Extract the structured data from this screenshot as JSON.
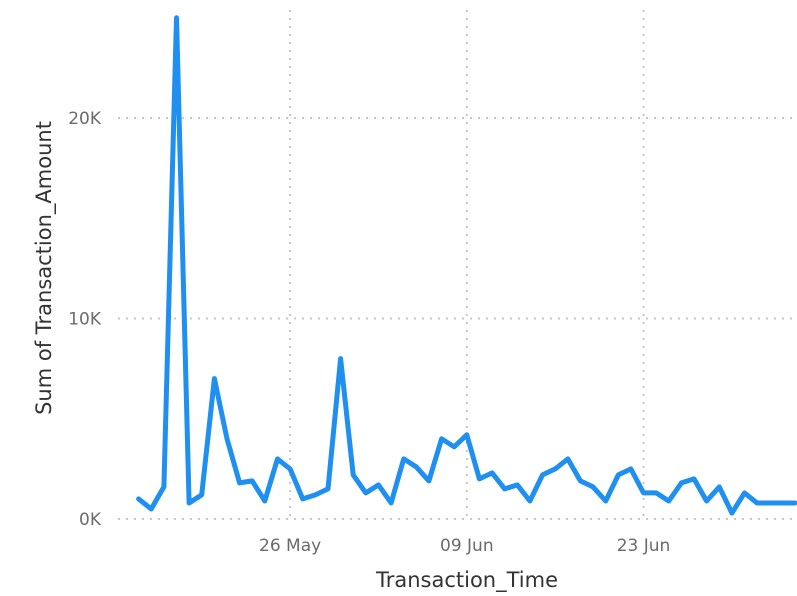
{
  "chart_data": {
    "type": "line",
    "title": "",
    "xlabel": "Transaction_Time",
    "ylabel": "Sum of Transaction_Amount",
    "x_start": "2024-05-13",
    "x_end": "2024-07-05",
    "xticks": [
      {
        "date": "2024-05-26",
        "label": "26 May"
      },
      {
        "date": "2024-06-09",
        "label": "09 Jun"
      },
      {
        "date": "2024-06-23",
        "label": "23 Jun"
      }
    ],
    "yticks": [
      {
        "value": 0,
        "label": "0K"
      },
      {
        "value": 10000,
        "label": "10K"
      },
      {
        "value": 20000,
        "label": "20K"
      }
    ],
    "ylim": [
      0,
      25500
    ],
    "grid": true,
    "color": "#1f8ff0",
    "series": [
      {
        "name": "",
        "x": [
          "2024-05-14",
          "2024-05-15",
          "2024-05-16",
          "2024-05-17",
          "2024-05-18",
          "2024-05-19",
          "2024-05-20",
          "2024-05-21",
          "2024-05-22",
          "2024-05-23",
          "2024-05-24",
          "2024-05-25",
          "2024-05-26",
          "2024-05-27",
          "2024-05-28",
          "2024-05-29",
          "2024-05-30",
          "2024-05-31",
          "2024-06-01",
          "2024-06-02",
          "2024-06-03",
          "2024-06-04",
          "2024-06-05",
          "2024-06-06",
          "2024-06-07",
          "2024-06-08",
          "2024-06-09",
          "2024-06-10",
          "2024-06-11",
          "2024-06-12",
          "2024-06-13",
          "2024-06-14",
          "2024-06-15",
          "2024-06-16",
          "2024-06-17",
          "2024-06-18",
          "2024-06-19",
          "2024-06-20",
          "2024-06-21",
          "2024-06-22",
          "2024-06-23",
          "2024-06-24",
          "2024-06-25",
          "2024-06-26",
          "2024-06-27",
          "2024-06-28",
          "2024-06-29",
          "2024-06-30",
          "2024-07-01",
          "2024-07-02",
          "2024-07-03",
          "2024-07-04",
          "2024-07-05"
        ],
        "values": [
          1000,
          500,
          1600,
          25000,
          800,
          1200,
          7000,
          4000,
          1800,
          1900,
          900,
          3000,
          2500,
          1000,
          1200,
          1500,
          8000,
          2200,
          1300,
          1700,
          800,
          3000,
          2600,
          1900,
          4000,
          3600,
          4200,
          2000,
          2300,
          1500,
          1700,
          900,
          2200,
          2500,
          3000,
          1900,
          1600,
          900,
          2200,
          2500,
          1300,
          1300,
          900,
          1800,
          2000,
          900,
          1600,
          300,
          1300,
          800,
          800,
          800,
          800
        ]
      }
    ]
  }
}
